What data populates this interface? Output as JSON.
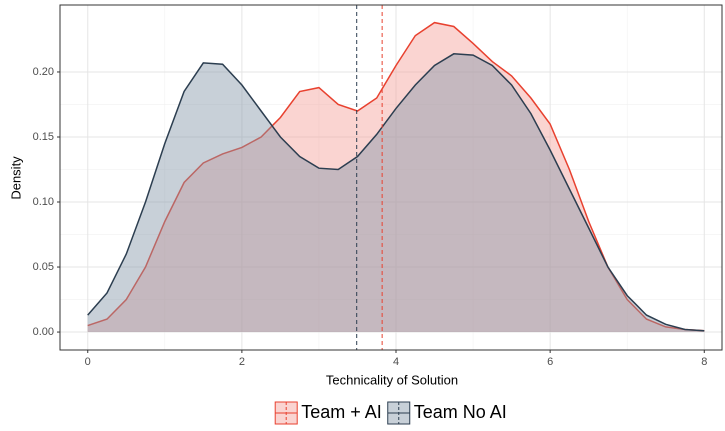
{
  "chart_data": {
    "type": "density",
    "xlabel": "Technicality of Solution",
    "ylabel": "Density",
    "x": [
      0,
      0.25,
      0.5,
      0.75,
      1,
      1.25,
      1.5,
      1.75,
      2,
      2.25,
      2.5,
      2.75,
      3,
      3.25,
      3.5,
      3.75,
      4,
      4.25,
      4.5,
      4.75,
      5,
      5.25,
      5.5,
      5.75,
      6,
      6.25,
      6.5,
      6.75,
      7,
      7.25,
      7.5,
      7.75,
      8
    ],
    "series": [
      {
        "name": "Team + AI",
        "color": "#e8412f",
        "fill": "#f4a09a",
        "mean": 3.82,
        "values": [
          0.005,
          0.01,
          0.025,
          0.05,
          0.085,
          0.115,
          0.13,
          0.137,
          0.142,
          0.15,
          0.165,
          0.185,
          0.188,
          0.175,
          0.17,
          0.18,
          0.205,
          0.228,
          0.238,
          0.235,
          0.222,
          0.208,
          0.197,
          0.18,
          0.16,
          0.125,
          0.085,
          0.05,
          0.025,
          0.01,
          0.004,
          0.002,
          0.001
        ]
      },
      {
        "name": "Team No AI",
        "color": "#2c3e50",
        "fill": "#8596a8",
        "mean": 3.49,
        "values": [
          0.013,
          0.03,
          0.06,
          0.1,
          0.145,
          0.185,
          0.207,
          0.206,
          0.19,
          0.17,
          0.15,
          0.135,
          0.126,
          0.125,
          0.135,
          0.152,
          0.172,
          0.19,
          0.205,
          0.214,
          0.213,
          0.205,
          0.19,
          0.168,
          0.14,
          0.11,
          0.08,
          0.05,
          0.028,
          0.013,
          0.006,
          0.002,
          0.001
        ]
      }
    ],
    "xlim": [
      -0.36,
      8.23
    ],
    "xticks": [
      0,
      2,
      4,
      6,
      8
    ],
    "ylim": [
      -0.0138,
      0.2515
    ],
    "yticks": [
      {
        "value": 0,
        "label": "0.00"
      },
      {
        "value": 0.05,
        "label": "0.05"
      },
      {
        "value": 0.1,
        "label": "0.10"
      },
      {
        "value": 0.15,
        "label": "0.15"
      },
      {
        "value": 0.2,
        "label": "0.20"
      }
    ],
    "grid": true,
    "legend": "bottom"
  }
}
